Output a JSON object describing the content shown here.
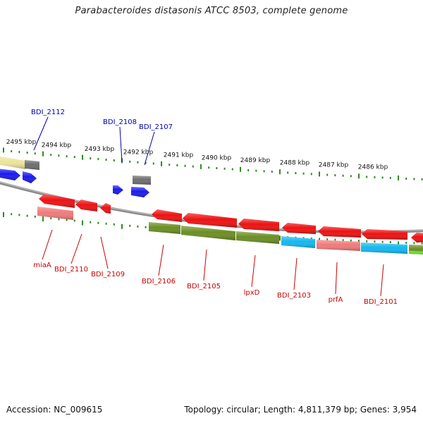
{
  "title": "Parabacteroides distasonis ATCC 8503, complete genome",
  "footer": {
    "accession": "Accession: NC_009615",
    "summary": "Topology: circular; Length: 4,811,379 bp; Genes: 3,954"
  },
  "colors": {
    "tick": "#2e8b22",
    "red_gene": "#ee1111",
    "pink_gene": "#f07a7a",
    "blue_gene": "#1a1aee",
    "olive_gene": "#6b8e23",
    "cyan_gene": "#12b8f0",
    "gray_gene": "#6e6e6e",
    "yellow_gene": "#ede49a",
    "lime_gene": "#66dd22",
    "top_label": "#0000aa",
    "bottom_label": "#cc0000"
  },
  "kbp_labels": [
    "2495 kbp",
    "2494 kbp",
    "2493 kbp",
    "2492 kbp",
    "2491 kbp",
    "2490 kbp",
    "2489 kbp",
    "2488 kbp",
    "2487 kbp",
    "2486 kbp"
  ],
  "top_gene_labels": [
    "BDI_2112",
    "BDI_2108",
    "BDI_2107"
  ],
  "bottom_gene_labels": [
    "miaA",
    "BDI_2110",
    "BDI_2109",
    "BDI_2106",
    "BDI_2105",
    "lpxD",
    "BDI_2103",
    "prfA",
    "BDI_2101"
  ]
}
